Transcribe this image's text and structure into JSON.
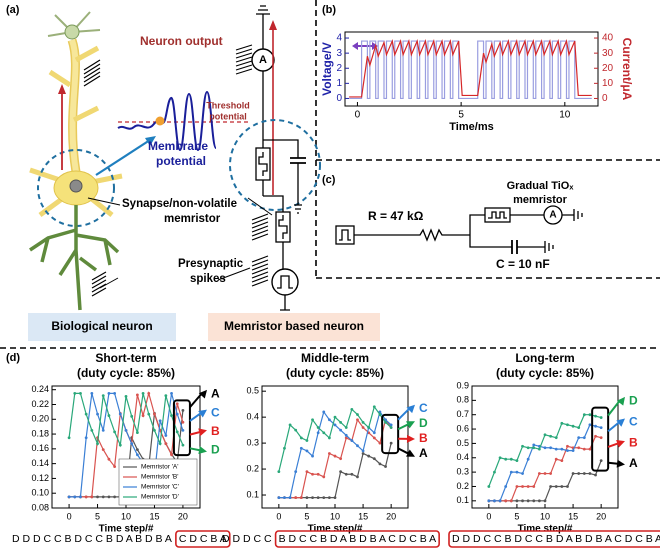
{
  "panel_a": {
    "label": "(a)",
    "neuron_output": "Neuron output",
    "threshold": [
      "Threshold",
      "potential"
    ],
    "membrane": [
      "Membrane",
      "potential"
    ],
    "ammeter": "A",
    "synapse": [
      "Synapse/non-volatile",
      "memristor"
    ],
    "presynaptic": [
      "Presynaptic",
      "spikes"
    ],
    "bio_box": "Biological neuron",
    "mem_box": "Memristor based neuron"
  },
  "panel_c": {
    "label": "(c)",
    "memristor": [
      "Gradual TiOₓ",
      "memristor"
    ],
    "resistor": "R = 47 kΩ",
    "capacitor": "C = 10 nF",
    "ammeter": "A"
  },
  "panel_d_label": "(d)",
  "chart_data": [
    {
      "type": "line",
      "panel_label": "(b)",
      "xlabel": "Time/ms",
      "ylabel": "Voltage/V",
      "y2label": "Current/μA",
      "y_color": "#1f22a8",
      "y2_color": "#c0272d",
      "xlim": [
        -0.6,
        11.6
      ],
      "xticks": [
        0,
        5,
        10
      ],
      "ylim": [
        -0.5,
        4.4
      ],
      "yticks": [
        0,
        1,
        2,
        3,
        4
      ],
      "y2lim": [
        -5,
        44
      ],
      "y2ticks": [
        0,
        10,
        20,
        30,
        40
      ],
      "series": [
        {
          "color": "#9a9ee0",
          "x": [
            -0.4,
            0.2,
            0.2,
            0.48,
            0.48,
            0.6,
            0.6,
            0.88,
            0.88,
            1.0,
            1.0,
            1.28,
            1.28,
            1.4,
            1.4,
            1.68,
            1.68,
            1.8,
            1.8,
            2.08,
            2.08,
            2.2,
            2.2,
            2.48,
            2.48,
            2.6,
            2.6,
            2.88,
            2.88,
            3.0,
            3.0,
            3.28,
            3.28,
            3.4,
            3.4,
            3.68,
            3.68,
            3.8,
            3.8,
            4.08,
            4.08,
            4.2,
            4.2,
            4.48,
            4.48,
            4.6,
            4.6,
            4.88,
            4.88,
            5.8,
            5.8,
            6.08,
            6.08,
            6.2,
            6.2,
            6.48,
            6.48,
            6.6,
            6.6,
            6.88,
            6.88,
            7.0,
            7.0,
            7.28,
            7.28,
            7.4,
            7.4,
            7.68,
            7.68,
            7.8,
            7.8,
            8.08,
            8.08,
            8.2,
            8.2,
            8.48,
            8.48,
            8.6,
            8.6,
            8.88,
            8.88,
            9.0,
            9.0,
            9.28,
            9.28,
            9.4,
            9.4,
            9.68,
            9.68,
            9.8,
            9.8,
            10.08,
            10.08,
            10.2,
            10.2,
            10.48,
            10.48,
            11.3
          ],
          "values": [
            0,
            0,
            3.8,
            3.8,
            0,
            0,
            3.8,
            3.8,
            0,
            0,
            3.8,
            3.8,
            0,
            0,
            3.8,
            3.8,
            0,
            0,
            3.8,
            3.8,
            0,
            0,
            3.8,
            3.8,
            0,
            0,
            3.8,
            3.8,
            0,
            0,
            3.8,
            3.8,
            0,
            0,
            3.8,
            3.8,
            0,
            0,
            3.8,
            3.8,
            0,
            0,
            3.8,
            3.8,
            0,
            0,
            3.8,
            3.8,
            0,
            0,
            3.8,
            3.8,
            0,
            0,
            3.8,
            3.8,
            0,
            0,
            3.8,
            3.8,
            0,
            0,
            3.8,
            3.8,
            0,
            0,
            3.8,
            3.8,
            0,
            0,
            3.8,
            3.8,
            0,
            0,
            3.8,
            3.8,
            0,
            0,
            3.8,
            3.8,
            0,
            0,
            3.8,
            3.8,
            0,
            0,
            3.8,
            3.8,
            0,
            0,
            3.8,
            3.8,
            0,
            0,
            3.8,
            3.8,
            0,
            0
          ]
        },
        {
          "color": "#d62728",
          "axis": "y2",
          "x": [
            -0.4,
            0.2,
            0.48,
            0.6,
            0.88,
            1.0,
            1.28,
            1.4,
            1.68,
            1.8,
            2.08,
            2.2,
            2.48,
            2.6,
            2.88,
            3.0,
            3.28,
            3.4,
            3.68,
            3.8,
            4.08,
            4.2,
            4.48,
            4.6,
            4.88,
            5.05,
            5.8,
            6.08,
            6.2,
            6.48,
            6.6,
            6.88,
            7.0,
            7.28,
            7.4,
            7.68,
            7.8,
            8.08,
            8.2,
            8.48,
            8.6,
            8.88,
            9.0,
            9.28,
            9.4,
            9.68,
            9.8,
            10.08,
            10.2,
            10.48,
            10.65,
            11.3
          ],
          "values": [
            1,
            1,
            28,
            22,
            35,
            28,
            37,
            29,
            38,
            29,
            38,
            29,
            38,
            29,
            38,
            29,
            38,
            29,
            38,
            29,
            38,
            29,
            38,
            29,
            38,
            2,
            2,
            30,
            24,
            36,
            28,
            37,
            29,
            38,
            29,
            38,
            29,
            38,
            29,
            38,
            29,
            38,
            29,
            38,
            29,
            38,
            29,
            38,
            29,
            38,
            2,
            2
          ]
        }
      ]
    },
    {
      "type": "line",
      "title": [
        "Short-term",
        "(duty cycle: 85%)"
      ],
      "xlabel": "Time step/#",
      "xlim": [
        -3,
        23
      ],
      "xticks": [
        0,
        5,
        10,
        15,
        20
      ],
      "ylim": [
        0.08,
        0.245
      ],
      "yticks": [
        0.08,
        {
          "value": 0.1,
          "label": "0.10"
        },
        0.12,
        0.14,
        0.16,
        0.18,
        {
          "value": 0.2,
          "label": "0.20"
        },
        0.22,
        0.24
      ],
      "legend": "lower right",
      "x": [
        0,
        1,
        2,
        3,
        4,
        5,
        6,
        7,
        8,
        9,
        10,
        11,
        12,
        13,
        14,
        15,
        16,
        17,
        18,
        19,
        20
      ],
      "series": [
        {
          "name": "Memristor 'A'",
          "color": "#555555",
          "values": [
            0.095,
            0.095,
            0.095,
            0.095,
            0.095,
            0.095,
            0.095,
            0.095,
            0.095,
            0.095,
            0.095,
            0.175,
            0.159,
            0.146,
            0.136,
            0.208,
            0.185,
            0.167,
            0.153,
            0.141,
            0.212
          ]
        },
        {
          "name": "Memristor 'B'",
          "color": "#d9534f",
          "values": [
            0.095,
            0.095,
            0.095,
            0.095,
            0.095,
            0.175,
            0.159,
            0.146,
            0.136,
            0.208,
            0.185,
            0.167,
            0.233,
            0.205,
            0.235,
            0.207,
            0.185,
            0.167,
            0.152,
            0.221,
            0.196
          ]
        },
        {
          "name": "Memristor 'C'",
          "color": "#3a7fd5",
          "values": [
            0.095,
            0.095,
            0.095,
            0.175,
            0.235,
            0.207,
            0.185,
            0.235,
            0.235,
            0.207,
            0.185,
            0.167,
            0.152,
            0.141,
            0.132,
            0.124,
            0.198,
            0.178,
            0.235,
            0.207,
            0.185
          ]
        },
        {
          "name": "Memristor 'D'",
          "color": "#2aa87a",
          "values": [
            0.175,
            0.235,
            0.235,
            0.207,
            0.185,
            0.167,
            0.232,
            0.205,
            0.183,
            0.165,
            0.231,
            0.204,
            0.182,
            0.235,
            0.207,
            0.185,
            0.167,
            0.232,
            0.205,
            0.183,
            0.165
          ]
        }
      ],
      "end_labels": [
        {
          "text": "A",
          "color": "#000000"
        },
        {
          "text": "C",
          "color": "#2a7fd5"
        },
        {
          "text": "B",
          "color": "#e02020"
        },
        {
          "text": "D",
          "color": "#1aa050"
        }
      ],
      "sequence": "D D D C C B D C C B D A B D B A",
      "sequence_boxed": "C D C B A"
    },
    {
      "type": "line",
      "title": [
        "Middle-term",
        "(duty cycle: 85%)"
      ],
      "xlabel": "Time step/#",
      "xlim": [
        -3,
        23
      ],
      "xticks": [
        0,
        5,
        10,
        15,
        20
      ],
      "ylim": [
        0.05,
        0.52
      ],
      "yticks": [
        0.1,
        0.2,
        0.3,
        0.4,
        0.5
      ],
      "x": [
        0,
        1,
        2,
        3,
        4,
        5,
        6,
        7,
        8,
        9,
        10,
        11,
        12,
        13,
        14,
        15,
        16,
        17,
        18,
        19,
        20
      ],
      "series": [
        {
          "color": "#555555",
          "values": [
            0.09,
            0.09,
            0.09,
            0.09,
            0.09,
            0.09,
            0.09,
            0.09,
            0.09,
            0.09,
            0.09,
            0.19,
            0.18,
            0.18,
            0.17,
            0.26,
            0.25,
            0.24,
            0.22,
            0.21,
            0.3
          ]
        },
        {
          "color": "#d9534f",
          "values": [
            0.09,
            0.09,
            0.09,
            0.09,
            0.09,
            0.19,
            0.18,
            0.18,
            0.17,
            0.26,
            0.25,
            0.24,
            0.32,
            0.31,
            0.39,
            0.36,
            0.34,
            0.32,
            0.3,
            0.39,
            0.36
          ]
        },
        {
          "color": "#3a7fd5",
          "values": [
            0.09,
            0.09,
            0.09,
            0.19,
            0.28,
            0.27,
            0.25,
            0.34,
            0.42,
            0.39,
            0.37,
            0.35,
            0.33,
            0.31,
            0.29,
            0.27,
            0.36,
            0.34,
            0.42,
            0.39,
            0.37
          ]
        },
        {
          "color": "#2aa87a",
          "values": [
            0.19,
            0.28,
            0.37,
            0.35,
            0.32,
            0.31,
            0.39,
            0.36,
            0.34,
            0.32,
            0.4,
            0.38,
            0.36,
            0.43,
            0.41,
            0.38,
            0.36,
            0.44,
            0.41,
            0.38,
            0.36
          ]
        }
      ],
      "end_labels": [
        {
          "text": "C",
          "color": "#2a7fd5"
        },
        {
          "text": "D",
          "color": "#1aa050"
        },
        {
          "text": "B",
          "color": "#e02020"
        },
        {
          "text": "A",
          "color": "#000000"
        }
      ],
      "sequence": "D D D C C",
      "sequence_boxed": "B D C C B D A B D B A C D C B A"
    },
    {
      "type": "line",
      "title": [
        "Long-term",
        "(duty cycle: 85%)"
      ],
      "xlabel": "Time step/#",
      "xlim": [
        -3,
        23
      ],
      "xticks": [
        0,
        5,
        10,
        15,
        20
      ],
      "ylim": [
        0.05,
        0.9
      ],
      "yticks": [
        0.1,
        0.2,
        0.3,
        0.4,
        0.5,
        0.6,
        0.7,
        0.8,
        0.9
      ],
      "x": [
        0,
        1,
        2,
        3,
        4,
        5,
        6,
        7,
        8,
        9,
        10,
        11,
        12,
        13,
        14,
        15,
        16,
        17,
        18,
        19,
        20
      ],
      "series": [
        {
          "color": "#555555",
          "values": [
            0.1,
            0.1,
            0.1,
            0.1,
            0.1,
            0.1,
            0.1,
            0.1,
            0.1,
            0.1,
            0.1,
            0.2,
            0.2,
            0.2,
            0.2,
            0.29,
            0.29,
            0.29,
            0.29,
            0.28,
            0.38
          ]
        },
        {
          "color": "#d9534f",
          "values": [
            0.1,
            0.1,
            0.1,
            0.1,
            0.1,
            0.2,
            0.2,
            0.2,
            0.2,
            0.29,
            0.29,
            0.29,
            0.39,
            0.38,
            0.48,
            0.47,
            0.47,
            0.46,
            0.46,
            0.55,
            0.54
          ]
        },
        {
          "color": "#3a7fd5",
          "values": [
            0.1,
            0.1,
            0.1,
            0.2,
            0.3,
            0.3,
            0.29,
            0.39,
            0.49,
            0.48,
            0.47,
            0.47,
            0.46,
            0.46,
            0.45,
            0.45,
            0.54,
            0.54,
            0.63,
            0.62,
            0.61
          ]
        },
        {
          "color": "#2aa87a",
          "values": [
            0.2,
            0.3,
            0.4,
            0.39,
            0.39,
            0.38,
            0.48,
            0.47,
            0.47,
            0.46,
            0.56,
            0.55,
            0.54,
            0.64,
            0.63,
            0.62,
            0.61,
            0.7,
            0.7,
            0.69,
            0.68
          ]
        }
      ],
      "end_labels": [
        {
          "text": "D",
          "color": "#1aa050"
        },
        {
          "text": "C",
          "color": "#2a7fd5"
        },
        {
          "text": "B",
          "color": "#e02020"
        },
        {
          "text": "A",
          "color": "#000000"
        }
      ],
      "sequence_boxed": "D D D C C B D C C B D A B D B A C D C B A"
    }
  ]
}
